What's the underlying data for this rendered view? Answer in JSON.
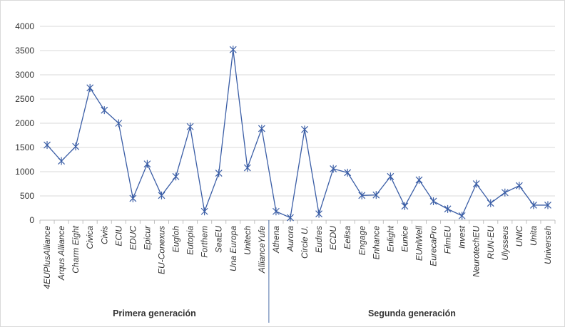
{
  "chart_data": {
    "type": "line",
    "categories": [
      "4EUPlusAlliance",
      "Arqus Alliance",
      "Charm Eight",
      "Civica",
      "Civis",
      "ECIU",
      "EDUC",
      "Epicur",
      "EU-Conexus",
      "Eugloh",
      "Eutopia",
      "Forthem",
      "SeaEU",
      "Una Europa",
      "Unitech",
      "AllianceYufe",
      "Athena",
      "Aurora",
      "Circle U.",
      "Eudres",
      "ECDU",
      "Eelisa",
      "Engage",
      "Enhance",
      "Enlight",
      "Eunice",
      "EUniWell",
      "EurecaPro",
      "FilmEU",
      "Invest",
      "NeurotechEU",
      "RUN-EU",
      "Ulysseus",
      "UNIC",
      "Unita",
      "Universeh"
    ],
    "series": [
      {
        "values": [
          1550,
          1220,
          1520,
          2730,
          2270,
          2000,
          450,
          1160,
          510,
          900,
          1930,
          180,
          970,
          3520,
          1080,
          1890,
          180,
          50,
          1870,
          130,
          1060,
          980,
          510,
          520,
          900,
          290,
          830,
          390,
          230,
          90,
          750,
          350,
          570,
          710,
          310,
          310
        ]
      }
    ],
    "groups": [
      {
        "label": "Primera generación",
        "start": 0,
        "end": 15
      },
      {
        "label": "Segunda generación",
        "start": 16,
        "end": 35
      }
    ],
    "yticks": [
      0,
      500,
      1000,
      1500,
      2000,
      2500,
      3000,
      3500,
      4000
    ],
    "ylim": [
      0,
      4000
    ],
    "grid": "horizontal",
    "legend": "none",
    "colors": {
      "line": "#3b5ea6",
      "grid": "#d9d9d9",
      "axis": "#bfbfbf",
      "separator": "#4f6fa8",
      "border": "#d9d9d9"
    },
    "marker": "asterisk"
  }
}
